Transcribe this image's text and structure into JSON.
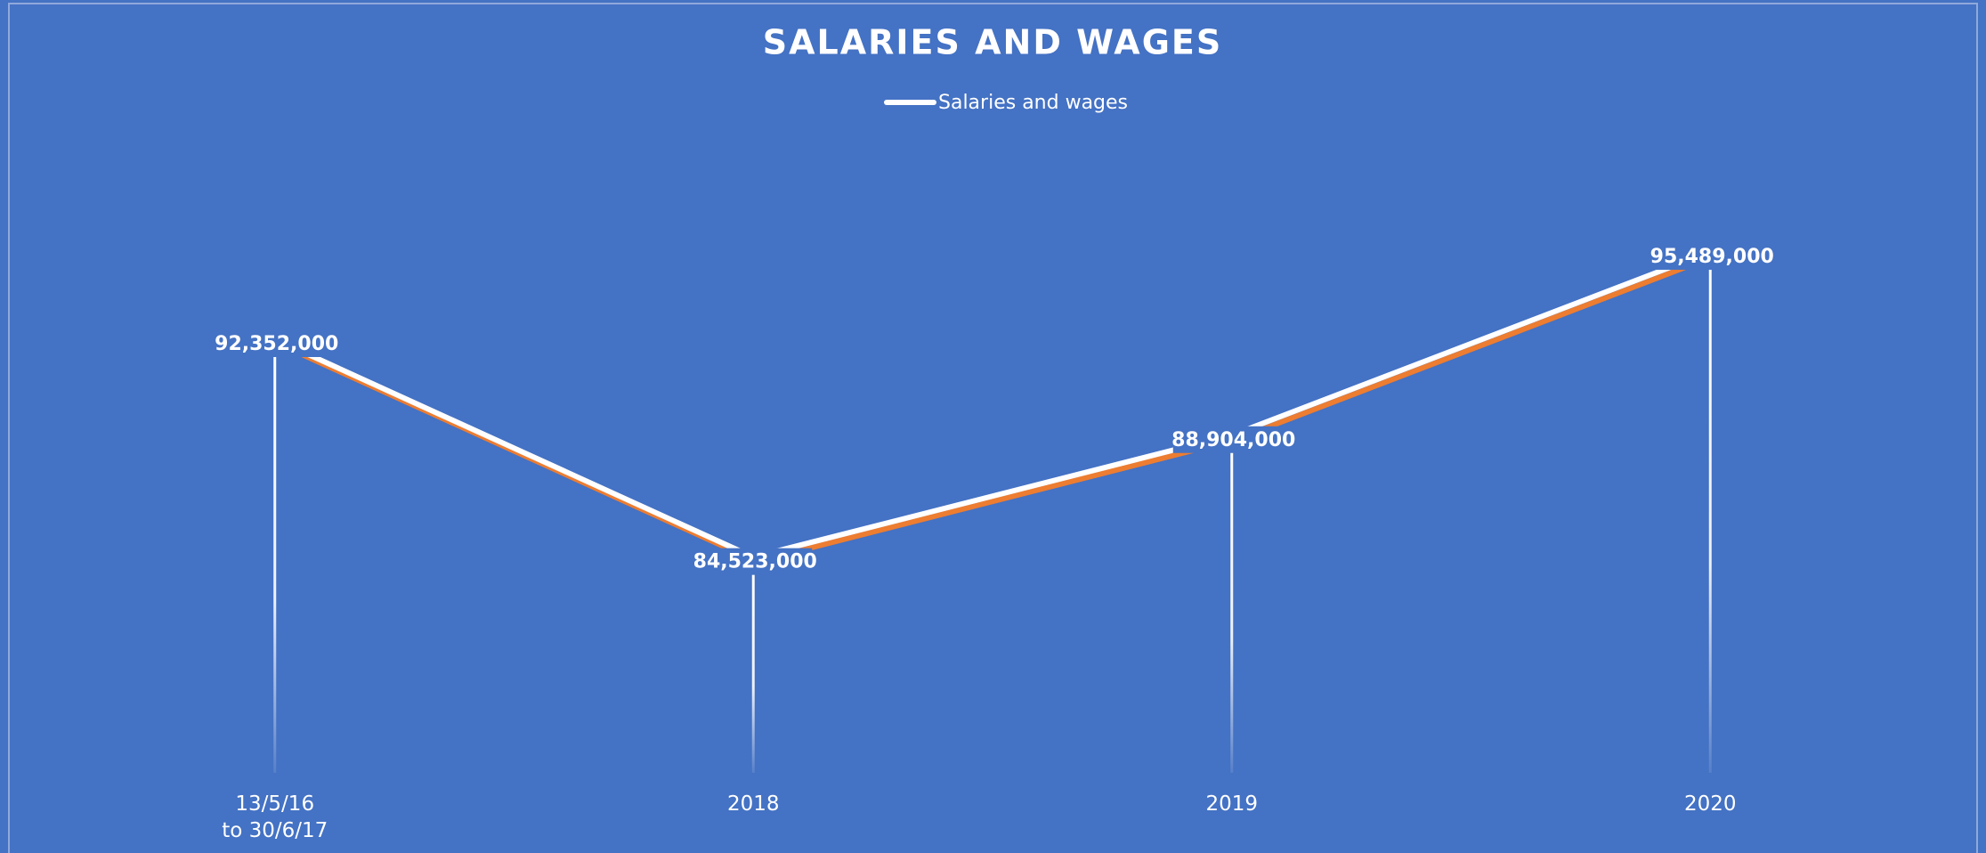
{
  "chart_data": {
    "type": "line",
    "title": "SALARIES AND WAGES",
    "categories": [
      "13/5/16\nto 30/6/17",
      "2018",
      "2019",
      "2020"
    ],
    "series": [
      {
        "name": "Salaries and wages",
        "color": "#ffffff",
        "values": [
          92352000,
          84523000,
          88904000,
          95489000
        ],
        "value_labels": [
          "92,352,000",
          "84,523,000",
          "88,904,000",
          "95,489,000"
        ]
      }
    ],
    "ylim": [
      76000000,
      100000000
    ],
    "drop_lines": true,
    "legend": "top"
  }
}
